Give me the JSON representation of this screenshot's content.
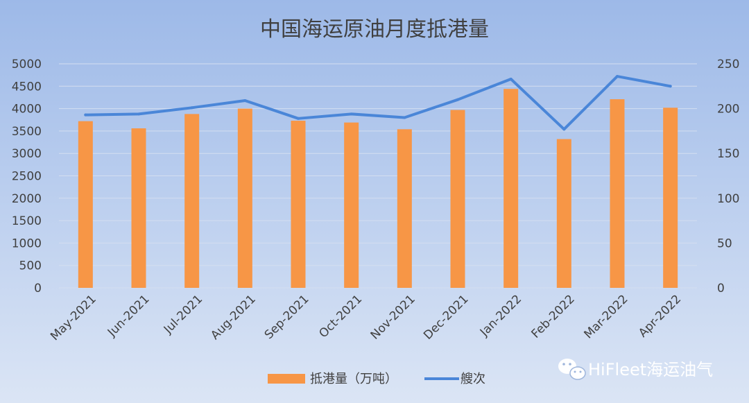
{
  "chart_data": {
    "type": "bar+line",
    "title": "中国海运原油月度抵港量",
    "categories": [
      "May-2021",
      "Jun-2021",
      "Jul-2021",
      "Aug-2021",
      "Sep-2021",
      "Oct-2021",
      "Nov-2021",
      "Dec-2021",
      "Jan-2022",
      "Feb-2022",
      "Mar-2022",
      "Apr-2022"
    ],
    "series": [
      {
        "name": "抵港量（万吨）",
        "type": "bar",
        "axis": "left",
        "color": "#f79646",
        "values": [
          3720,
          3560,
          3880,
          4000,
          3730,
          3690,
          3540,
          3970,
          4440,
          3320,
          4210,
          4020
        ]
      },
      {
        "name": "艘次",
        "type": "line",
        "axis": "right",
        "color": "#4a86d8",
        "values": [
          193,
          194,
          201,
          209,
          189,
          194,
          190,
          210,
          233,
          177,
          236,
          225
        ]
      }
    ],
    "y_left": {
      "min": 0,
      "max": 5000,
      "step": 500
    },
    "y_right": {
      "min": 0,
      "max": 250,
      "step": 50
    },
    "grid": true,
    "legend_position": "bottom"
  },
  "watermark": {
    "icon": "wechat-icon",
    "text": "HiFleet海运油气"
  }
}
